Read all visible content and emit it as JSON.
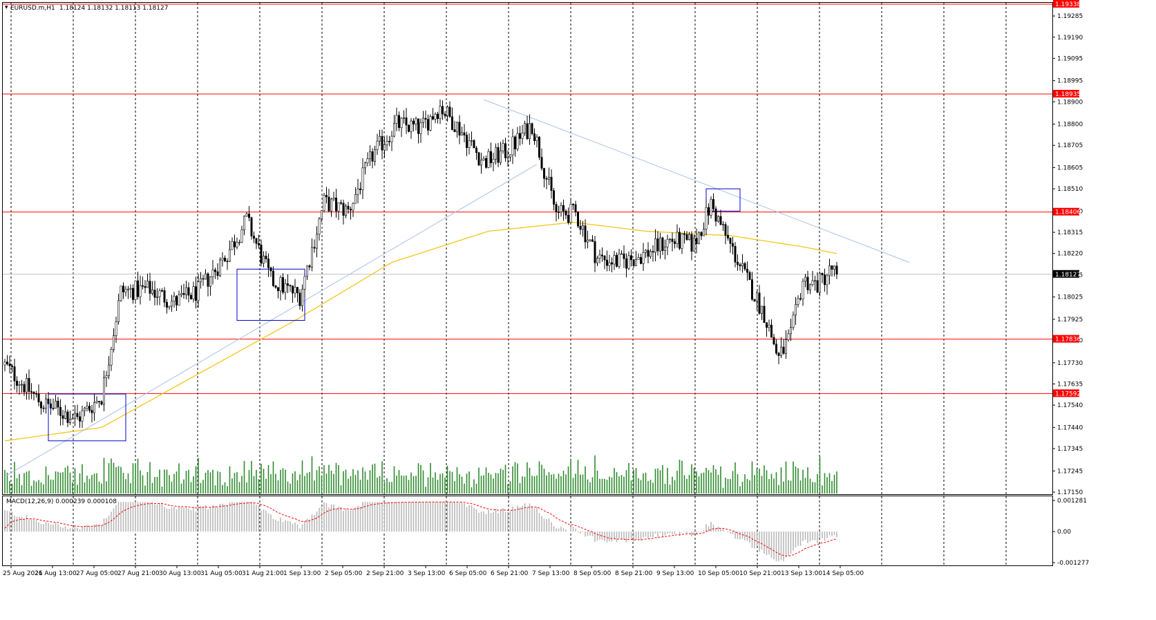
{
  "header": {
    "symbol": "EURUSD.m,H1",
    "ohlc": "1.18124 1.18132 1.18113 1.18127"
  },
  "macd": {
    "label": "MACD(12,26,9) 0.000239 0.000108",
    "ticks": [
      "0.001281",
      "0.00",
      "-0.001277"
    ],
    "ymax": 0.001281,
    "ymin": -0.001277
  },
  "price_axis": {
    "ymax": 1.19338,
    "ymin": 1.1715,
    "ticks": [
      "1.19285",
      "1.19190",
      "1.19095",
      "1.18995",
      "1.18900",
      "1.18800",
      "1.18705",
      "1.18605",
      "1.18510",
      "1.18410",
      "1.18315",
      "1.18220",
      "1.18125",
      "1.18025",
      "1.17925",
      "1.17830",
      "1.17730",
      "1.17635",
      "1.17540",
      "1.17440",
      "1.17345",
      "1.17245",
      "1.17150"
    ],
    "tick_values": [
      1.19285,
      1.1919,
      1.19095,
      1.18995,
      1.189,
      1.188,
      1.18705,
      1.18605,
      1.1851,
      1.1841,
      1.18315,
      1.1822,
      1.18125,
      1.18025,
      1.17925,
      1.1783,
      1.1773,
      1.17635,
      1.1754,
      1.1744,
      1.17345,
      1.17245,
      1.1715
    ]
  },
  "levels": [
    {
      "label": "1.19338",
      "value": 1.19338,
      "color": "#ff0000"
    },
    {
      "label": "1.18935",
      "value": 1.18935,
      "color": "#ff0000"
    },
    {
      "label": "1.18406",
      "value": 1.18406,
      "color": "#ff0000"
    },
    {
      "label": "1.17836",
      "value": 1.17836,
      "color": "#ff0000"
    },
    {
      "label": "1.17592",
      "value": 1.17592,
      "color": "#ff0000"
    }
  ],
  "current": {
    "label": "1.18127",
    "value": 1.18127
  },
  "time_axis": [
    "25 Aug 2021",
    "26 Aug 13:00",
    "27 Aug 05:00",
    "27 Aug 21:00",
    "30 Aug 13:00",
    "31 Aug 05:00",
    "31 Aug 21:00",
    "1 Sep 13:00",
    "2 Sep 05:00",
    "2 Sep 21:00",
    "3 Sep 13:00",
    "6 Sep 05:00",
    "6 Sep 21:00",
    "7 Sep 13:00",
    "8 Sep 05:00",
    "8 Sep 21:00",
    "9 Sep 13:00",
    "10 Sep 05:00",
    "10 Sep 21:00",
    "13 Sep 13:00",
    "14 Sep 05:00"
  ],
  "colors": {
    "candle": "#000000",
    "level": "#ff0000",
    "ma": "#f5c518",
    "trend": "#a9c1e6",
    "box": "#0000cc",
    "volume": "#2e8b2e",
    "macd_hist": "#b8b8b8",
    "macd_signal": "#ff0000"
  },
  "chart_data": {
    "type": "candlestick",
    "symbol": "EURUSD.m",
    "timeframe": "H1",
    "anchors": [
      {
        "bar": 0,
        "price": 1.1772
      },
      {
        "bar": 15,
        "price": 1.1755
      },
      {
        "bar": 30,
        "price": 1.1748
      },
      {
        "bar": 40,
        "price": 1.1758
      },
      {
        "bar": 48,
        "price": 1.1805
      },
      {
        "bar": 60,
        "price": 1.1806
      },
      {
        "bar": 70,
        "price": 1.18
      },
      {
        "bar": 80,
        "price": 1.1805
      },
      {
        "bar": 92,
        "price": 1.1822
      },
      {
        "bar": 100,
        "price": 1.1837
      },
      {
        "bar": 110,
        "price": 1.181
      },
      {
        "bar": 122,
        "price": 1.1803
      },
      {
        "bar": 132,
        "price": 1.1845
      },
      {
        "bar": 142,
        "price": 1.1841
      },
      {
        "bar": 152,
        "price": 1.1866
      },
      {
        "bar": 162,
        "price": 1.188
      },
      {
        "bar": 172,
        "price": 1.1878
      },
      {
        "bar": 180,
        "price": 1.1888
      },
      {
        "bar": 188,
        "price": 1.1878
      },
      {
        "bar": 198,
        "price": 1.1863
      },
      {
        "bar": 208,
        "price": 1.1868
      },
      {
        "bar": 218,
        "price": 1.188
      },
      {
        "bar": 228,
        "price": 1.184
      },
      {
        "bar": 236,
        "price": 1.184
      },
      {
        "bar": 245,
        "price": 1.182
      },
      {
        "bar": 255,
        "price": 1.1818
      },
      {
        "bar": 265,
        "price": 1.1822
      },
      {
        "bar": 275,
        "price": 1.1828
      },
      {
        "bar": 285,
        "price": 1.1826
      },
      {
        "bar": 292,
        "price": 1.1844
      },
      {
        "bar": 298,
        "price": 1.183
      },
      {
        "bar": 306,
        "price": 1.1812
      },
      {
        "bar": 314,
        "price": 1.1795
      },
      {
        "bar": 320,
        "price": 1.1775
      },
      {
        "bar": 325,
        "price": 1.1785
      },
      {
        "bar": 330,
        "price": 1.181
      },
      {
        "bar": 336,
        "price": 1.1808
      },
      {
        "bar": 342,
        "price": 1.1815
      },
      {
        "bar": 344,
        "price": 1.18127
      }
    ],
    "ma_anchors": [
      {
        "bar": 0,
        "price": 1.1738
      },
      {
        "bar": 40,
        "price": 1.1744
      },
      {
        "bar": 80,
        "price": 1.1768
      },
      {
        "bar": 120,
        "price": 1.1792
      },
      {
        "bar": 160,
        "price": 1.1818
      },
      {
        "bar": 200,
        "price": 1.1832
      },
      {
        "bar": 235,
        "price": 1.1836
      },
      {
        "bar": 265,
        "price": 1.1832
      },
      {
        "bar": 300,
        "price": 1.183
      },
      {
        "bar": 330,
        "price": 1.1825
      },
      {
        "bar": 344,
        "price": 1.1822
      }
    ],
    "trendlines": [
      {
        "bar1": 0,
        "price1": 1.1722,
        "bar2": 220,
        "price2": 1.1862
      },
      {
        "bar1": 198,
        "price1": 1.1891,
        "bar2": 374,
        "price2": 1.1818
      }
    ],
    "boxes": [
      {
        "bar1": 18,
        "bar2": 50,
        "top": 1.1759,
        "bottom": 1.1738
      },
      {
        "bar1": 96,
        "bar2": 124,
        "top": 1.1815,
        "bottom": 1.1792
      },
      {
        "bar1": 290,
        "bar2": 304,
        "top": 1.1851,
        "bottom": 1.1841
      }
    ],
    "ylim": [
      1.1715,
      1.19338
    ],
    "bars": 345
  }
}
